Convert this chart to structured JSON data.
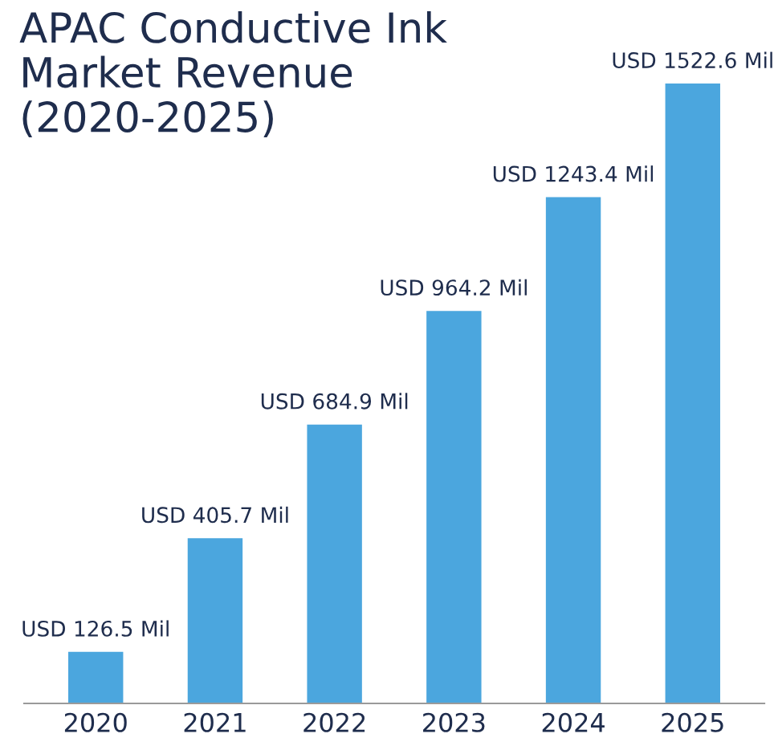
{
  "chart_data": {
    "type": "bar",
    "title": "APAC Conductive Ink\nMarket Revenue\n(2020-2025)",
    "categories": [
      "2020",
      "2021",
      "2022",
      "2023",
      "2024",
      "2025"
    ],
    "values": [
      126.5,
      405.7,
      684.9,
      964.2,
      1243.4,
      1522.6
    ],
    "value_labels": [
      "USD 126.5 Mil",
      "USD 405.7 Mil",
      "USD 684.9 Mil",
      "USD 964.2 Mil",
      "USD 1243.4 Mil",
      "USD 1522.6 Mil"
    ],
    "color": "#4ba6de",
    "grid": false,
    "legend": false
  }
}
